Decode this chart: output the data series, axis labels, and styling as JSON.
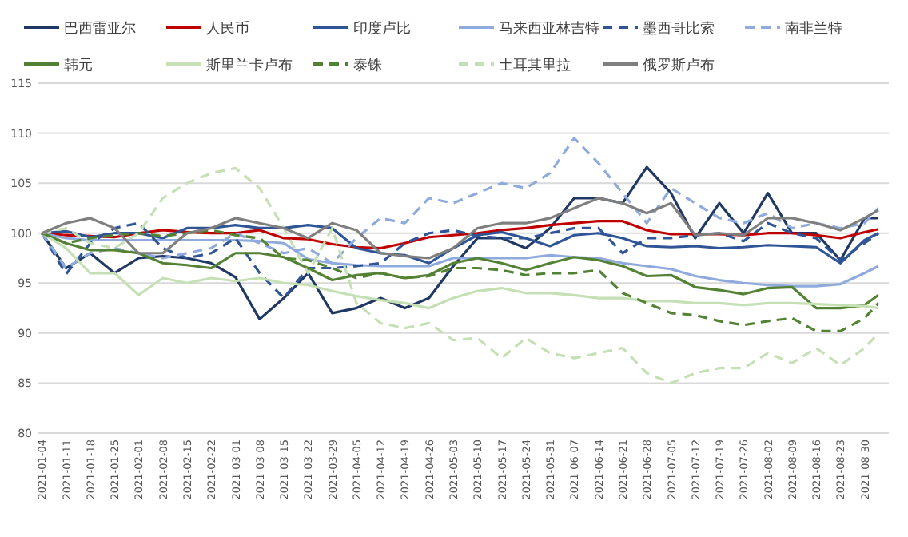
{
  "chart_data": {
    "type": "line",
    "x": [
      "2021-01-04",
      "2021-01-11",
      "2021-01-18",
      "2021-01-25",
      "2021-02-01",
      "2021-02-08",
      "2021-02-15",
      "2021-02-22",
      "2021-03-01",
      "2021-03-08",
      "2021-03-15",
      "2021-03-22",
      "2021-03-29",
      "2021-04-05",
      "2021-04-12",
      "2021-04-19",
      "2021-04-26",
      "2021-05-03",
      "2021-05-10",
      "2021-05-17",
      "2021-05-24",
      "2021-05-31",
      "2021-06-07",
      "2021-06-14",
      "2021-06-21",
      "2021-06-28",
      "2021-07-05",
      "2021-07-12",
      "2021-07-19",
      "2021-07-26",
      "2021-08-02",
      "2021-08-09",
      "2021-08-16",
      "2021-08-23",
      "2021-08-30",
      "2021-09-03"
    ],
    "series": [
      {
        "name": "巴西雷亚尔",
        "color": "#203864",
        "line_style": "solid",
        "values": [
          100,
          96.5,
          98,
          96,
          97.5,
          97.7,
          97.5,
          97,
          95.6,
          91.4,
          93.5,
          96,
          92,
          92.5,
          93.5,
          92.5,
          93.5,
          96.7,
          99.5,
          99.5,
          98.5,
          100.5,
          103.5,
          103.5,
          103,
          106.6,
          104,
          99.5,
          103,
          100,
          104,
          100,
          100,
          97.3,
          101.5,
          101.5
        ]
      },
      {
        "name": "人民币",
        "color": "#c00000",
        "line_style": "solid",
        "values": [
          100,
          99.8,
          99.7,
          99.6,
          100,
          100.3,
          100.1,
          100,
          100,
          100.3,
          99.5,
          99.4,
          98.9,
          98.6,
          98.5,
          99,
          99.6,
          99.8,
          100,
          100.3,
          100.5,
          100.8,
          101,
          101.2,
          101.2,
          100.3,
          99.9,
          99.9,
          99.9,
          99.8,
          100,
          100,
          99.8,
          99.5,
          100.1,
          100.4
        ]
      },
      {
        "name": "印度卢比",
        "color": "#2f5597",
        "line_style": "solid",
        "values": [
          100,
          100.2,
          99.6,
          100,
          100,
          99.5,
          100.5,
          100.5,
          100.8,
          100.5,
          100.5,
          100.8,
          100.5,
          98.5,
          98,
          97.8,
          97,
          98.5,
          99.8,
          100.1,
          99.5,
          98.7,
          99.8,
          100,
          99.5,
          98.7,
          98.6,
          98.7,
          98.5,
          98.6,
          98.8,
          98.7,
          98.6,
          97,
          99.3,
          100
        ]
      },
      {
        "name": "马来西亚林吉特",
        "color": "#8faadc",
        "line_style": "solid",
        "values": [
          100,
          99.5,
          99.3,
          99.3,
          99.3,
          99.3,
          99.3,
          99.3,
          99.3,
          99.2,
          99,
          97.4,
          97,
          96.8,
          96.7,
          96.7,
          96.7,
          97.5,
          97.5,
          97.5,
          97.5,
          97.8,
          97.6,
          97.5,
          97,
          96.7,
          96.4,
          95.7,
          95.3,
          95,
          94.8,
          94.7,
          94.7,
          94.9,
          96,
          96.7
        ]
      },
      {
        "name": "墨西哥比索",
        "color": "#2f5597",
        "line_style": "dashed",
        "values": [
          100,
          95.9,
          99,
          100.5,
          101,
          98.5,
          97.5,
          98,
          99.5,
          96,
          93.5,
          96.5,
          96.5,
          96.7,
          97,
          99,
          100,
          100.3,
          99.7,
          99.5,
          99.5,
          100,
          100.5,
          100.5,
          98,
          99.5,
          99.5,
          99.8,
          100,
          99.2,
          101,
          100,
          99.5,
          97.3,
          99,
          100
        ]
      },
      {
        "name": "南非兰特",
        "color": "#8faadc",
        "line_style": "dashed",
        "values": [
          100,
          96.5,
          98,
          98.5,
          98,
          97.5,
          98,
          98.5,
          100,
          99,
          98,
          98.5,
          97,
          99.5,
          101.5,
          101,
          103.5,
          103,
          104,
          105,
          104.5,
          106,
          109.5,
          107,
          104,
          101,
          104.5,
          103,
          101.5,
          101,
          102,
          100.5,
          101,
          100.5,
          101,
          102.5
        ]
      },
      {
        "name": "韩元",
        "color": "#548235",
        "line_style": "solid",
        "values": [
          100,
          99,
          98.3,
          98.3,
          98,
          97,
          96.8,
          96.5,
          98,
          98,
          97.6,
          96.5,
          95.3,
          95.8,
          96,
          95.5,
          95.8,
          97,
          97.5,
          97,
          96.3,
          97,
          97.6,
          97.3,
          96.7,
          95.7,
          95.8,
          94.6,
          94.3,
          93.9,
          94.5,
          94.6,
          92.5,
          92.5,
          92.8,
          93.8
        ]
      },
      {
        "name": "斯里兰卡卢布",
        "color": "#c5e0b4",
        "line_style": "solid",
        "values": [
          100,
          98.5,
          96,
          96,
          93.8,
          95.5,
          95,
          95.5,
          95.2,
          95.5,
          95,
          94.8,
          94.2,
          93.7,
          93.3,
          93,
          92.5,
          93.5,
          94.2,
          94.5,
          94,
          94,
          93.8,
          93.5,
          93.5,
          93.2,
          93.2,
          93,
          93,
          92.8,
          93,
          93,
          92.9,
          92.8,
          92.7,
          92.5
        ]
      },
      {
        "name": "泰铢",
        "color": "#548235",
        "line_style": "dashed",
        "values": [
          100,
          99,
          99.5,
          99.8,
          100,
          99.7,
          100,
          100.3,
          99.8,
          99.5,
          97.5,
          97.3,
          96.5,
          95.5,
          96,
          95.5,
          95.7,
          96.5,
          96.5,
          96.3,
          95.8,
          96,
          96,
          96.3,
          94,
          93,
          92,
          91.8,
          91.2,
          90.8,
          91.2,
          91.5,
          90.2,
          90.2,
          91.5,
          93
        ]
      },
      {
        "name": "土耳其里拉",
        "color": "#c5e0b4",
        "line_style": "dashed",
        "values": [
          100,
          100.5,
          99,
          98.5,
          100,
          103.5,
          105,
          106,
          106.5,
          104.5,
          100.5,
          96,
          100.5,
          93,
          91,
          90.5,
          91,
          89.3,
          89.5,
          87.5,
          89.5,
          88,
          87.5,
          88,
          88.5,
          86,
          85,
          86,
          86.5,
          86.5,
          88,
          87,
          88.5,
          86.8,
          88.5,
          90
        ]
      },
      {
        "name": "俄罗斯卢布",
        "color": "#7f7f7f",
        "line_style": "solid",
        "values": [
          100,
          101,
          101.5,
          100.5,
          98,
          98,
          100,
          100.5,
          101.5,
          101,
          100.5,
          99.5,
          101,
          100.3,
          98,
          97.7,
          97.5,
          98.5,
          100.5,
          101,
          101,
          101.5,
          102.5,
          103.5,
          103,
          102,
          103,
          99.8,
          100,
          99.8,
          101.5,
          101.5,
          101,
          100.3,
          101.5,
          102.3
        ]
      }
    ],
    "xlim": [
      "2021-01-03",
      "2021-09-06"
    ],
    "xticks": [
      "2021-01-04",
      "2021-01-11",
      "2021-01-18",
      "2021-01-25",
      "2021-02-01",
      "2021-02-08",
      "2021-02-15",
      "2021-02-22",
      "2021-03-01",
      "2021-03-08",
      "2021-03-15",
      "2021-03-22",
      "2021-03-29",
      "2021-04-05",
      "2021-04-12",
      "2021-04-19",
      "2021-04-26",
      "2021-05-03",
      "2021-05-10",
      "2021-05-17",
      "2021-05-24",
      "2021-05-31",
      "2021-06-07",
      "2021-06-14",
      "2021-06-21",
      "2021-06-28",
      "2021-07-05",
      "2021-07-12",
      "2021-07-19",
      "2021-07-26",
      "2021-08-02",
      "2021-08-09",
      "2021-08-16",
      "2021-08-23",
      "2021-08-30"
    ],
    "ylim": [
      80,
      115
    ],
    "yticks": [
      80,
      85,
      90,
      95,
      100,
      105,
      110,
      115
    ],
    "grid": "y",
    "legend": "top",
    "marker": "none"
  }
}
